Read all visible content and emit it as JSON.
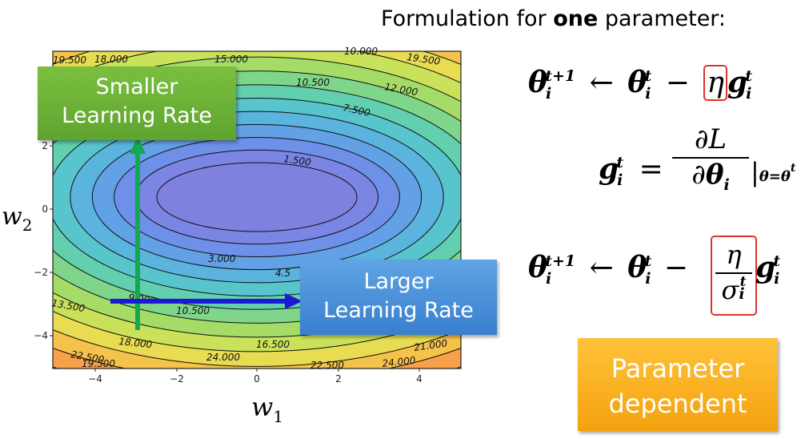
{
  "heading": {
    "prefix": "Formulation for ",
    "bold": "one",
    "suffix": " parameter:"
  },
  "callouts": {
    "smaller": {
      "line1": "Smaller",
      "line2": "Learning Rate"
    },
    "larger": {
      "line1": "Larger",
      "line2": "Learning Rate"
    },
    "param": {
      "line1": "Parameter",
      "line2": "dependent"
    }
  },
  "equations": {
    "theta": "θ",
    "g": "g",
    "i": "i",
    "t": "t",
    "t_plus_1": "t+1",
    "arrow": "←",
    "minus": "−",
    "equals": "=",
    "eta": "η",
    "partial_L": "∂L",
    "partial": "∂",
    "sigma": "σ",
    "theta_eq": "θ=θ",
    "bar": "|"
  },
  "chart_data": {
    "type": "contour",
    "xlabel": "w",
    "xlabel_sub": "1",
    "ylabel": "w",
    "ylabel_sub": "2",
    "xlim": [
      -5,
      5
    ],
    "ylim": [
      -5,
      5
    ],
    "x_ticks": [
      "−4",
      "−2",
      "0",
      "2",
      "4"
    ],
    "y_ticks": [
      "2",
      "0",
      "−2",
      "−4"
    ],
    "contour_labels": [
      "19.500",
      "18.000",
      "15.000",
      "10.000",
      "19.500",
      "10.500",
      "12.000",
      "7.500",
      "1.500",
      "3.000",
      "4.5",
      "9.000",
      "13.500",
      "10.500",
      "18.000",
      "16.500",
      "21.000",
      "22.500",
      "24.000",
      "19.500",
      "22.500",
      "24.000"
    ],
    "colors": {
      "center": "#7f81df",
      "edge": "#ef6060",
      "lines": "#111111"
    }
  }
}
